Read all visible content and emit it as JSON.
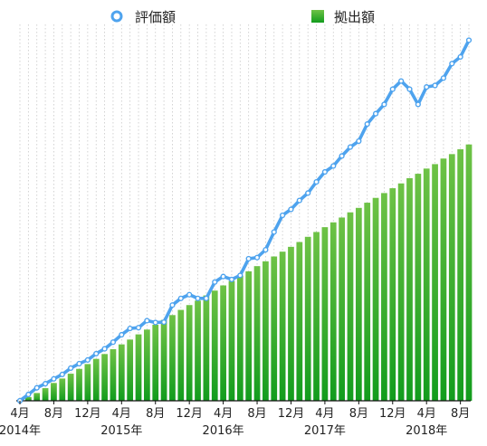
{
  "chart_data": {
    "type": "bar+line",
    "legend": {
      "placement": "top",
      "items": [
        {
          "key": "line",
          "label": "評価額",
          "marker": "circle-line"
        },
        {
          "key": "bar",
          "label": "拠出額",
          "marker": "square"
        }
      ]
    },
    "x_months": [
      "2014-04",
      "2014-05",
      "2014-06",
      "2014-07",
      "2014-08",
      "2014-09",
      "2014-10",
      "2014-11",
      "2014-12",
      "2015-01",
      "2015-02",
      "2015-03",
      "2015-04",
      "2015-05",
      "2015-06",
      "2015-07",
      "2015-08",
      "2015-09",
      "2015-10",
      "2015-11",
      "2015-12",
      "2016-01",
      "2016-02",
      "2016-03",
      "2016-04",
      "2016-05",
      "2016-06",
      "2016-07",
      "2016-08",
      "2016-09",
      "2016-10",
      "2016-11",
      "2016-12",
      "2017-01",
      "2017-02",
      "2017-03",
      "2017-04",
      "2017-05",
      "2017-06",
      "2017-07",
      "2017-08",
      "2017-09",
      "2017-10",
      "2017-11",
      "2017-12",
      "2018-01",
      "2018-02",
      "2018-03",
      "2018-04",
      "2018-05",
      "2018-06",
      "2018-07",
      "2018-08",
      "2018-09"
    ],
    "tick_labels": [
      {
        "month": "2014-04",
        "label": "4月",
        "year_label": "2014年"
      },
      {
        "month": "2014-08",
        "label": "8月",
        "year_label": ""
      },
      {
        "month": "2014-12",
        "label": "12月",
        "year_label": ""
      },
      {
        "month": "2015-04",
        "label": "4月",
        "year_label": "2015年"
      },
      {
        "month": "2015-08",
        "label": "8月",
        "year_label": ""
      },
      {
        "month": "2015-12",
        "label": "12月",
        "year_label": ""
      },
      {
        "month": "2016-04",
        "label": "4月",
        "year_label": "2016年"
      },
      {
        "month": "2016-08",
        "label": "8月",
        "year_label": ""
      },
      {
        "month": "2016-12",
        "label": "12月",
        "year_label": ""
      },
      {
        "month": "2017-04",
        "label": "4月",
        "year_label": "2017年"
      },
      {
        "month": "2017-08",
        "label": "8月",
        "year_label": ""
      },
      {
        "month": "2017-12",
        "label": "12月",
        "year_label": ""
      },
      {
        "month": "2018-04",
        "label": "4月",
        "year_label": "2018年"
      },
      {
        "month": "2018-08",
        "label": "8月",
        "year_label": ""
      }
    ],
    "ylim": [
      0,
      100
    ],
    "y_axis_labels": "none",
    "grid": "vertical dotted per month",
    "series": [
      {
        "key": "bar",
        "name": "拠出額",
        "type": "bar",
        "values": [
          0.0,
          1.0,
          2.1,
          3.4,
          4.8,
          6.0,
          7.3,
          8.6,
          9.9,
          11.3,
          12.6,
          13.9,
          15.2,
          16.5,
          17.9,
          19.2,
          20.5,
          21.8,
          23.1,
          24.5,
          25.8,
          27.0,
          28.4,
          29.7,
          31.1,
          32.3,
          33.7,
          34.9,
          36.3,
          37.6,
          38.9,
          40.2,
          41.5,
          42.8,
          44.2,
          45.5,
          46.8,
          48.1,
          49.4,
          50.8,
          52.0,
          53.4,
          54.7,
          56.0,
          57.3,
          58.6,
          60.0,
          61.2,
          62.6,
          63.8,
          65.3,
          66.5,
          67.8,
          69.1
        ]
      },
      {
        "key": "line",
        "name": "評価額",
        "type": "line",
        "values": [
          0.0,
          1.7,
          3.5,
          4.6,
          5.9,
          7.1,
          8.8,
          10.0,
          11.0,
          12.7,
          14.0,
          15.8,
          17.8,
          19.5,
          19.7,
          21.6,
          21.1,
          21.2,
          25.8,
          27.6,
          28.6,
          27.6,
          27.6,
          32.0,
          33.5,
          32.7,
          33.8,
          38.3,
          38.6,
          40.7,
          45.5,
          50.0,
          51.6,
          54.0,
          56.0,
          59.0,
          61.7,
          63.3,
          66.0,
          68.4,
          70.0,
          74.6,
          77.4,
          79.9,
          84.0,
          86.2,
          84.0,
          79.9,
          84.6,
          85.0,
          87.0,
          90.9,
          92.7,
          97.2
        ]
      }
    ],
    "colors": {
      "line": "#4ea3ee",
      "marker_fill": "#ffffff",
      "bar_top": "#6ec246",
      "bar_bottom": "#129c1d",
      "grid": "#c8c8c8",
      "axis": "#111111"
    }
  }
}
